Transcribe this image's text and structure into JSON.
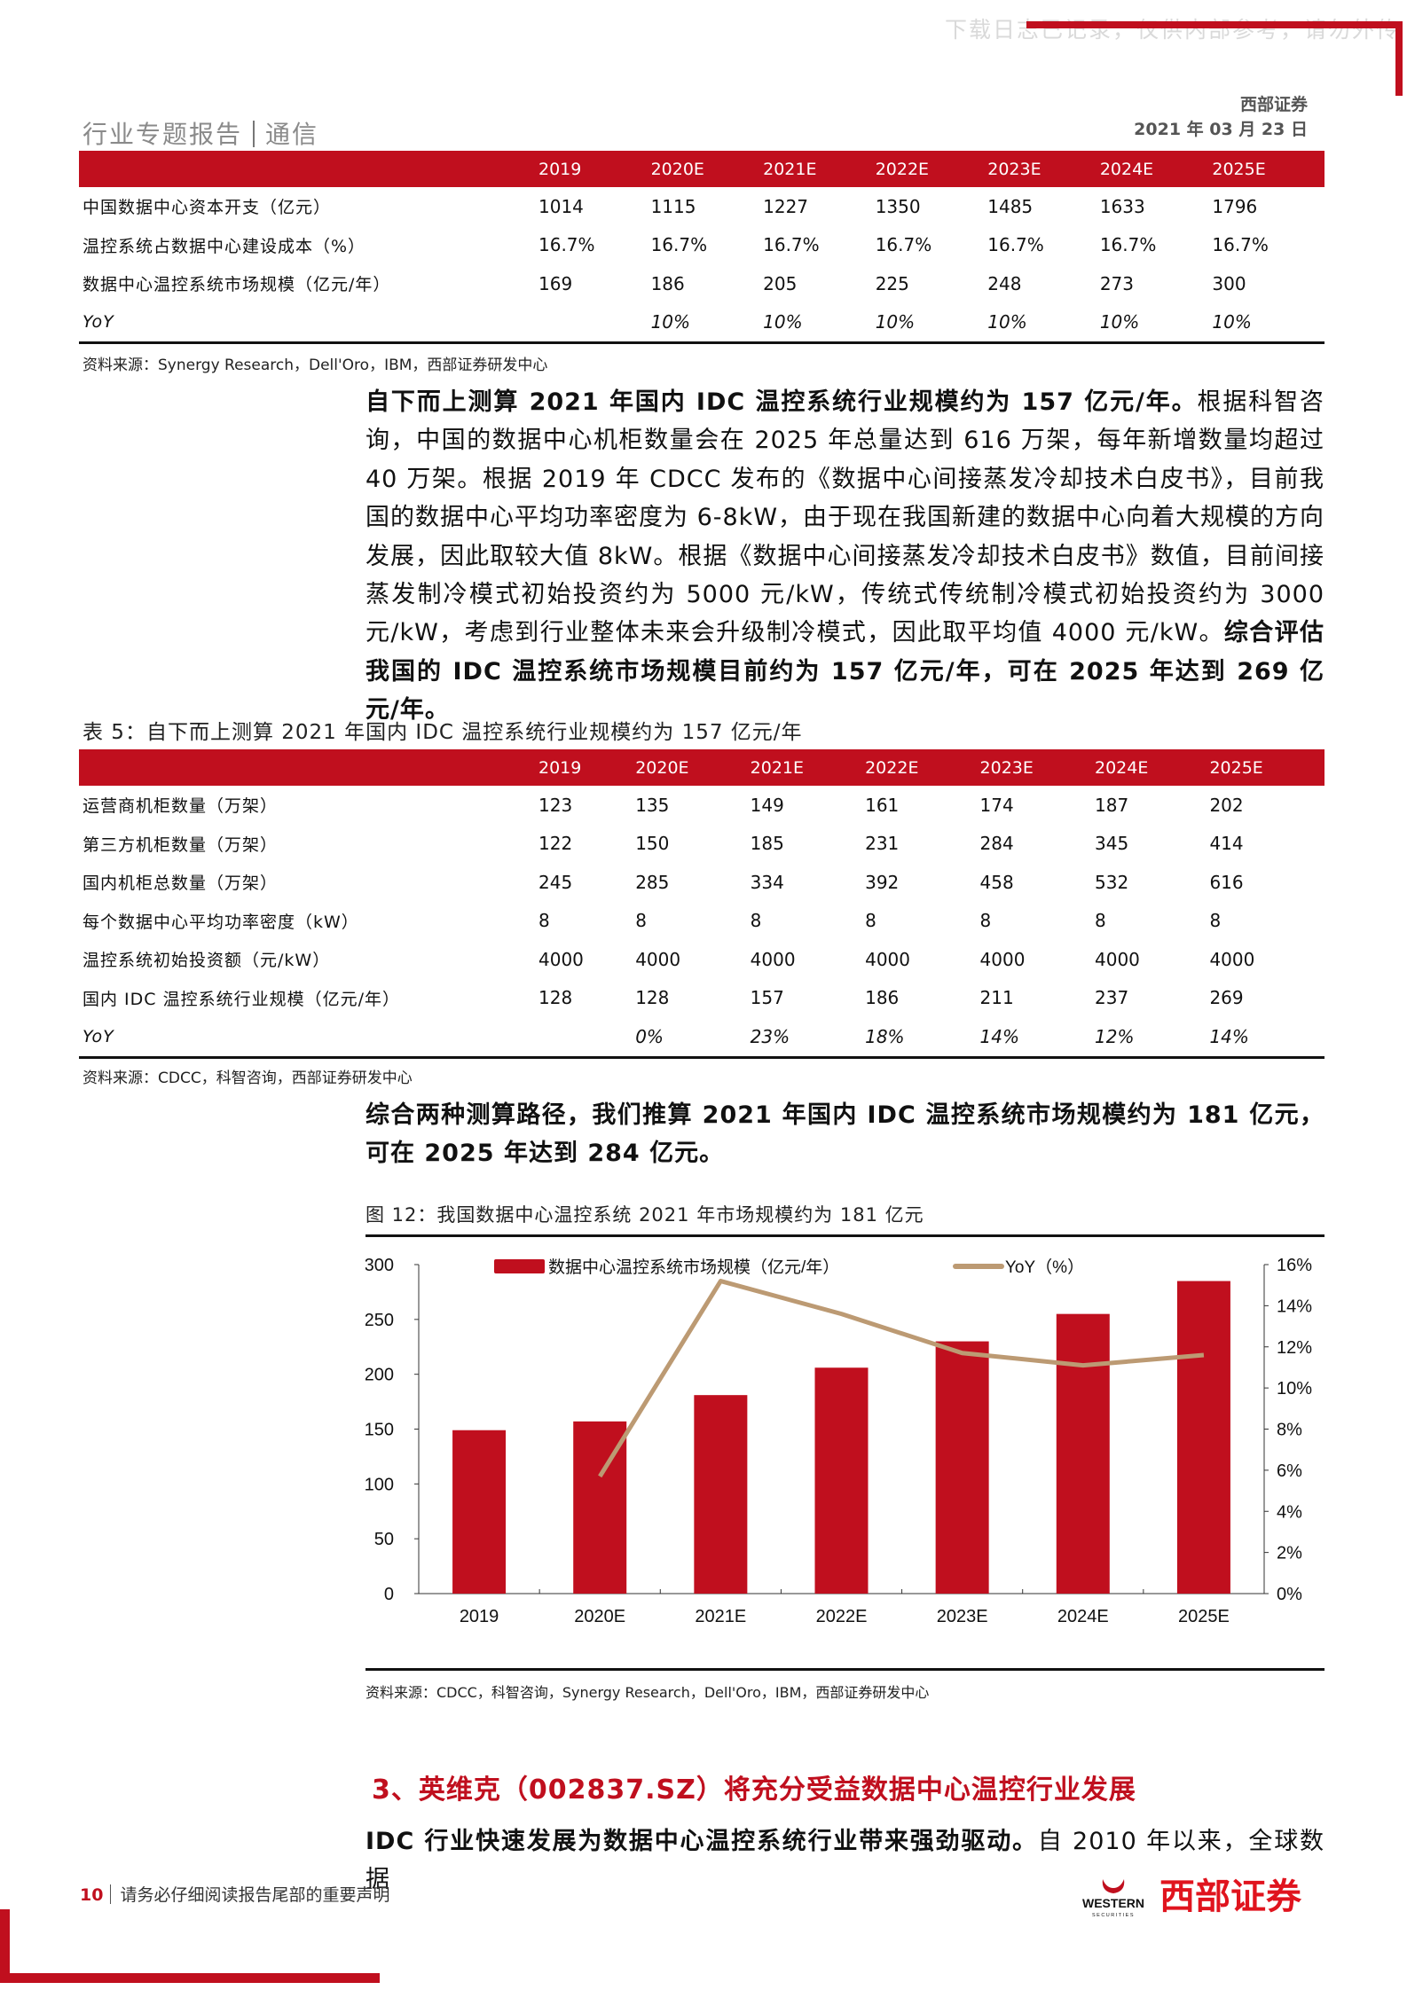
{
  "watermark": "下载日志已记录，仅供内部参考，请勿外传",
  "header": {
    "brand": "西部证券",
    "date": "2021 年 03 月 23 日",
    "report_type": "行业专题报告",
    "industry": "通信"
  },
  "table1": {
    "columns": [
      "2019",
      "2020E",
      "2021E",
      "2022E",
      "2023E",
      "2024E",
      "2025E"
    ],
    "rows": [
      {
        "label": "中国数据中心资本开支（亿元）",
        "values": [
          "1014",
          "1115",
          "1227",
          "1350",
          "1485",
          "1633",
          "1796"
        ]
      },
      {
        "label": "温控系统占数据中心建设成本（%）",
        "values": [
          "16.7%",
          "16.7%",
          "16.7%",
          "16.7%",
          "16.7%",
          "16.7%",
          "16.7%"
        ]
      },
      {
        "label": "数据中心温控系统市场规模（亿元/年）",
        "values": [
          "169",
          "186",
          "205",
          "225",
          "248",
          "273",
          "300"
        ]
      },
      {
        "label": "YoY",
        "values": [
          "",
          "10%",
          "10%",
          "10%",
          "10%",
          "10%",
          "10%"
        ],
        "italic": true
      }
    ],
    "source": "资料来源：Synergy Research，Dell'Oro，IBM，西部证券研发中心"
  },
  "paragraph1": {
    "bold_lead": "自下而上测算 2021 年国内 IDC 温控系统行业规模约为 157 亿元/年。",
    "body": "根据科智咨询，中国的数据中心机柜数量会在 2025 年总量达到 616 万架，每年新增数量均超过 40 万架。根据 2019 年 CDCC 发布的《数据中心间接蒸发冷却技术白皮书》，目前我国的数据中心平均功率密度为 6-8kW，由于现在我国新建的数据中心向着大规模的方向发展，因此取较大值 8kW。根据《数据中心间接蒸发冷却技术白皮书》数值，目前间接蒸发制冷模式初始投资约为 5000 元/kW，传统式传统制冷模式初始投资约为 3000 元/kW，考虑到行业整体未来会升级制冷模式，因此取平均值 4000 元/kW。",
    "bold_tail": "综合评估我国的 IDC 温控系统市场规模目前约为 157 亿元/年，可在 2025 年达到 269 亿元/年。"
  },
  "table5": {
    "caption": "表 5：自下而上测算 2021 年国内 IDC 温控系统行业规模约为 157 亿元/年",
    "columns": [
      "2019",
      "2020E",
      "2021E",
      "2022E",
      "2023E",
      "2024E",
      "2025E"
    ],
    "rows": [
      {
        "label": "运营商机柜数量（万架）",
        "values": [
          "123",
          "135",
          "149",
          "161",
          "174",
          "187",
          "202"
        ]
      },
      {
        "label": "第三方机柜数量（万架）",
        "values": [
          "122",
          "150",
          "185",
          "231",
          "284",
          "345",
          "414"
        ]
      },
      {
        "label": "国内机柜总数量（万架）",
        "values": [
          "245",
          "285",
          "334",
          "392",
          "458",
          "532",
          "616"
        ]
      },
      {
        "label": "每个数据中心平均功率密度（kW）",
        "values": [
          "8",
          "8",
          "8",
          "8",
          "8",
          "8",
          "8"
        ]
      },
      {
        "label": "温控系统初始投资额（元/kW）",
        "values": [
          "4000",
          "4000",
          "4000",
          "4000",
          "4000",
          "4000",
          "4000"
        ]
      },
      {
        "label": "国内 IDC 温控系统行业规模（亿元/年）",
        "values": [
          "128",
          "128",
          "157",
          "186",
          "211",
          "237",
          "269"
        ]
      },
      {
        "label": "YoY",
        "values": [
          "",
          "0%",
          "23%",
          "18%",
          "14%",
          "12%",
          "14%"
        ],
        "italic": true
      }
    ],
    "source": "资料来源：CDCC，科智咨询，西部证券研发中心"
  },
  "paragraph2": "综合两种测算路径，我们推算 2021 年国内 IDC 温控系统市场规模约为 181 亿元，可在 2025 年达到 284 亿元。",
  "figure": {
    "caption": "图 12：我国数据中心温控系统 2021 年市场规模约为 181 亿元",
    "source": "资料来源：CDCC，科智咨询，Synergy Research，Dell'Oro，IBM，西部证券研发中心"
  },
  "chart_data": {
    "type": "bar+line",
    "categories": [
      "2019",
      "2020E",
      "2021E",
      "2022E",
      "2023E",
      "2024E",
      "2025E"
    ],
    "series": [
      {
        "name": "数据中心温控系统市场规模（亿元/年）",
        "type": "bar",
        "axis": "left",
        "color": "#c00f1e",
        "values": [
          149,
          157,
          181,
          206,
          230,
          255,
          285
        ]
      },
      {
        "name": "YoY（%）",
        "type": "line",
        "axis": "right",
        "color": "#bc9a73",
        "values": [
          null,
          5.7,
          15.2,
          13.6,
          11.7,
          11.1,
          11.6
        ]
      }
    ],
    "y_left": {
      "lim": [
        0,
        300
      ],
      "ticks": [
        "0",
        "50",
        "100",
        "150",
        "200",
        "250",
        "300"
      ]
    },
    "y_right": {
      "lim": [
        0,
        16
      ],
      "ticks": [
        "0%",
        "2%",
        "4%",
        "6%",
        "8%",
        "10%",
        "12%",
        "14%",
        "16%"
      ]
    },
    "legend": "top",
    "grid": false
  },
  "section3": {
    "heading": "3、英维克（002837.SZ）将充分受益数据中心温控行业发展",
    "bold_lead": "IDC 行业快速发展为数据中心温控系统行业带来强劲驱动。",
    "body": "自 2010 年以来，全球数据"
  },
  "footer": {
    "page": "10",
    "disclaimer": "请务必仔细阅读报告尾部的重要声明",
    "logo_en": "WESTERN",
    "logo_en_sub": "SECURITIES",
    "logo_cn": "西部证券"
  },
  "colors": {
    "accent": "#c00f1e",
    "line": "#bc9a73"
  }
}
